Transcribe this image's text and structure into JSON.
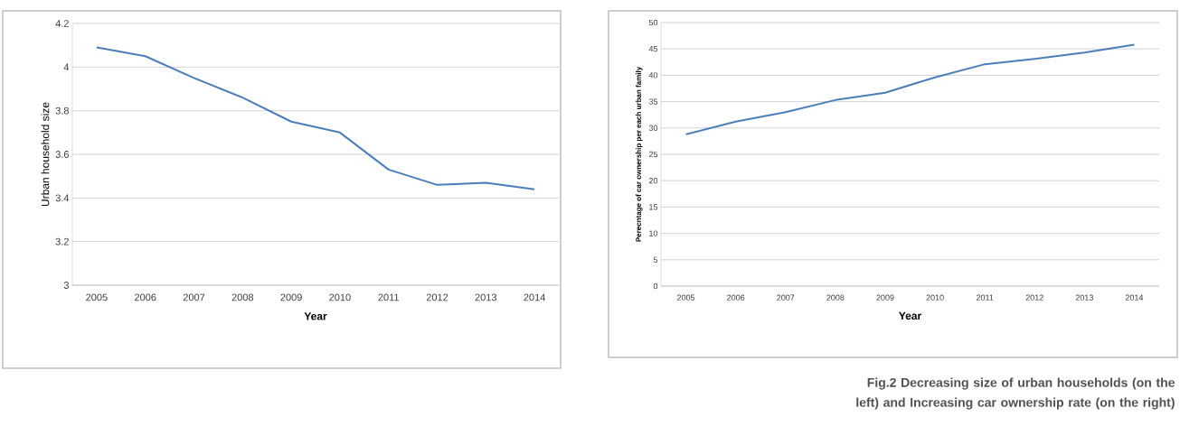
{
  "chart_data": [
    {
      "type": "line",
      "categories": [
        "2005",
        "2006",
        "2007",
        "2008",
        "2009",
        "2010",
        "2011",
        "2012",
        "2013",
        "2014"
      ],
      "values": [
        4.09,
        4.05,
        3.95,
        3.86,
        3.75,
        3.7,
        3.53,
        3.46,
        3.47,
        3.44
      ],
      "color": "#4a7ebb",
      "ylim": [
        3,
        4.2
      ],
      "yticks": [
        3,
        3.2,
        3.4,
        3.6,
        3.8,
        4,
        4.2
      ],
      "grid": "y",
      "xlabel": "Year",
      "ylabel": "Urban household size"
    },
    {
      "type": "line",
      "categories": [
        "2005",
        "2006",
        "2007",
        "2008",
        "2009",
        "2010",
        "2011",
        "2012",
        "2013",
        "2014"
      ],
      "values": [
        28.8,
        31.2,
        33.0,
        35.3,
        36.7,
        39.6,
        42.1,
        43.1,
        44.3,
        45.8
      ],
      "color": "#4a7ebb",
      "ylim": [
        0,
        50
      ],
      "yticks": [
        0,
        5,
        10,
        15,
        20,
        25,
        30,
        35,
        40,
        45,
        50
      ],
      "grid": "y",
      "xlabel": "Year",
      "ylabel": "Perecntage of car ownership per each urban family",
      "annotations": [
        "Fig.2 Decreasing size of urban households (on the left) and Increasing car ownership rate (on the right)"
      ]
    }
  ]
}
